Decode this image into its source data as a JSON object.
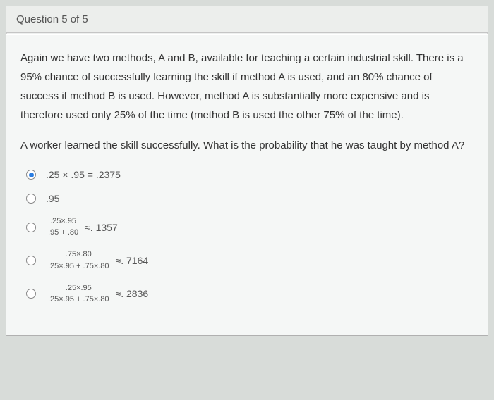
{
  "header": {
    "label": "Question 5 of 5"
  },
  "question": {
    "paragraph1": "Again we have two methods, A and B, available for teaching a certain industrial skill. There is a 95% chance of successfully learning the skill if method A is used, and an 80% chance of success if method B is used. However, method A is substantially more expensive and is therefore used only 25% of the time (method B is used the other 75% of the time).",
    "paragraph2": "A worker learned the skill successfully. What is the probability that he was taught by method A?"
  },
  "options": {
    "opt1": {
      "selected": true,
      "text": ".25 × .95 = .2375"
    },
    "opt2": {
      "selected": false,
      "text": ".95"
    },
    "opt3": {
      "selected": false,
      "num": ".25×.95",
      "den": ".95 + .80",
      "approx": "≈. 1357"
    },
    "opt4": {
      "selected": false,
      "num": ".75×.80",
      "den": ".25×.95 + .75×.80",
      "approx": "≈. 7164"
    },
    "opt5": {
      "selected": false,
      "num": ".25×.95",
      "den": ".25×.95 + .75×.80",
      "approx": "≈. 2836"
    }
  }
}
